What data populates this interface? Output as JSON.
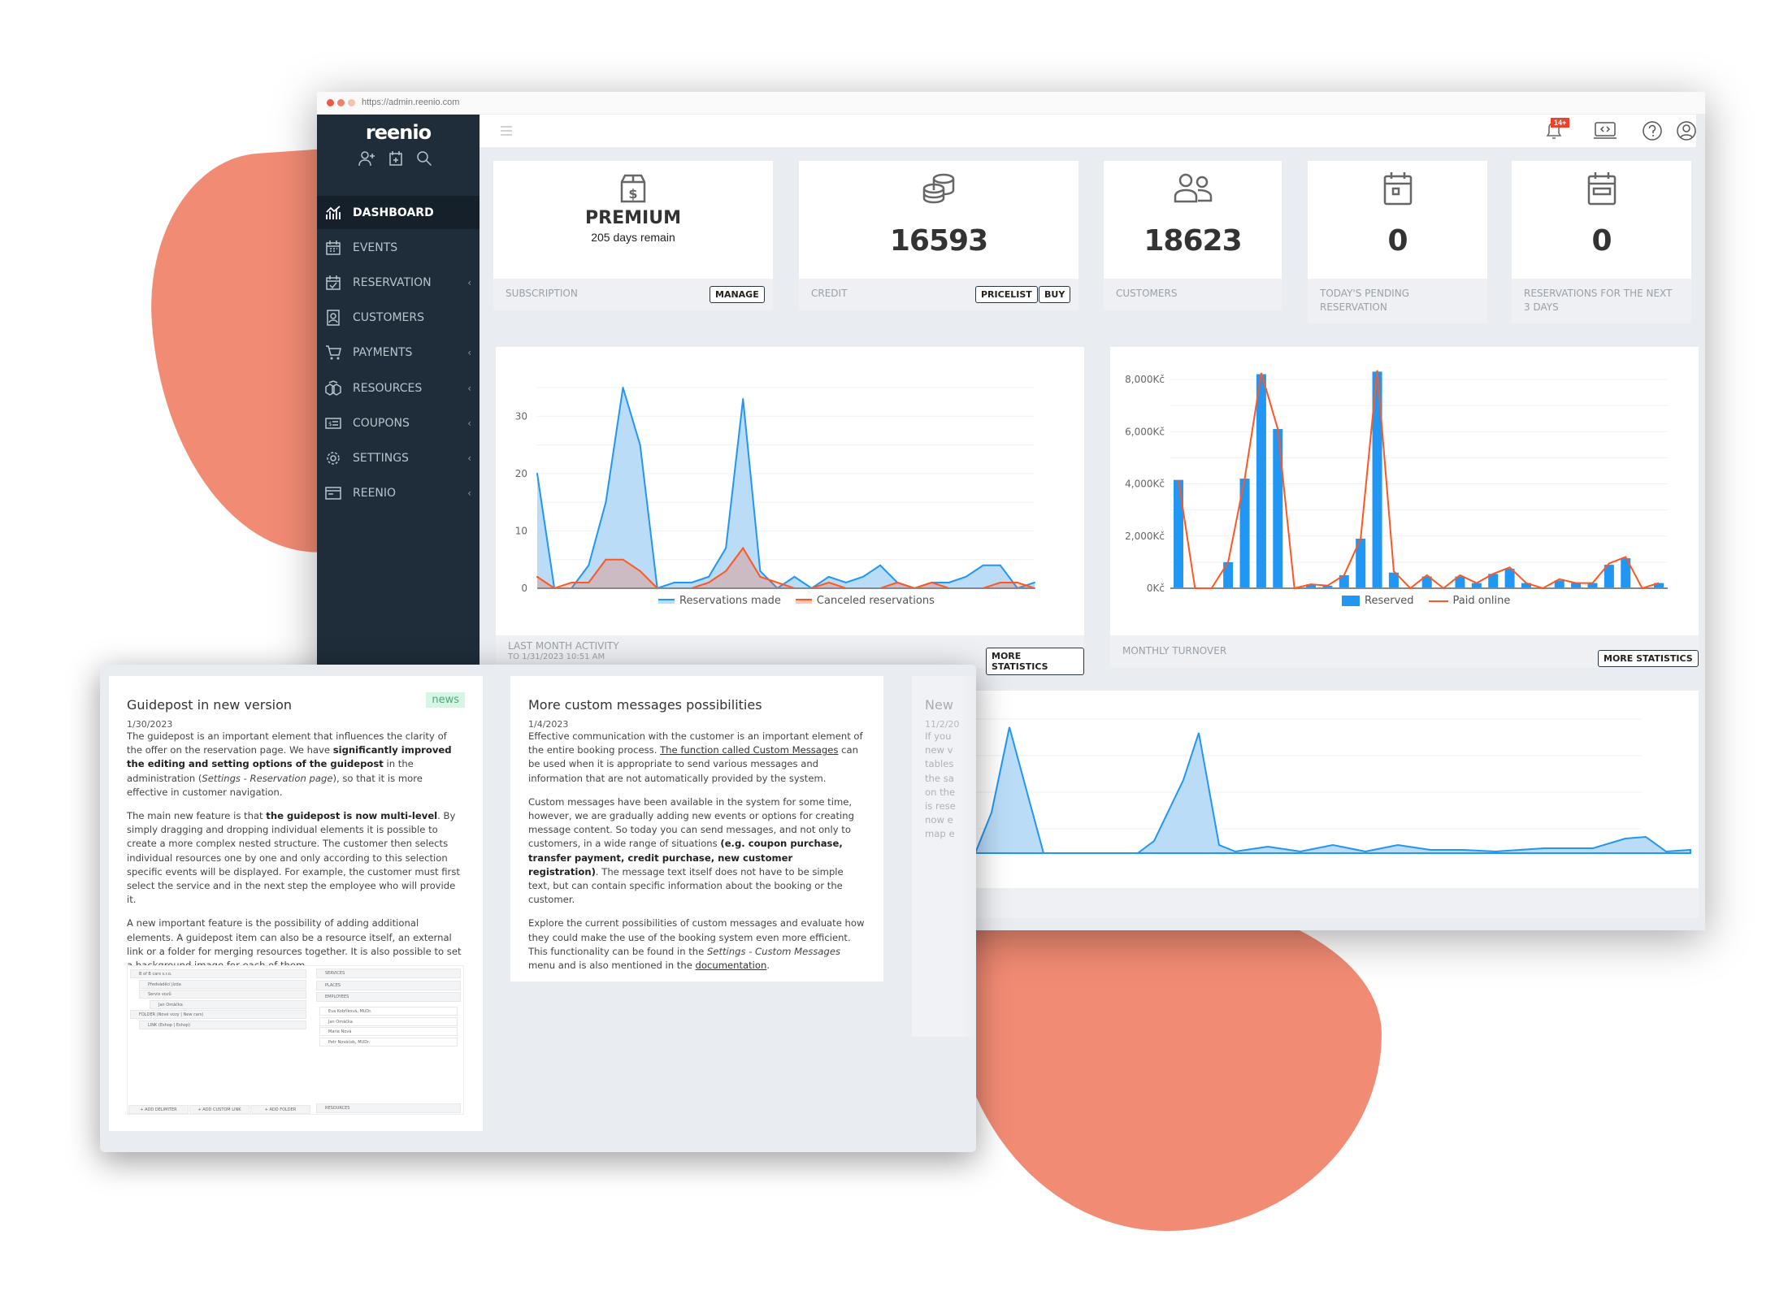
{
  "browser": {
    "url": "https://admin.reenio.com"
  },
  "sidebar": {
    "logo": "reenio",
    "quick_icons": [
      "add-user-icon",
      "calendar-add-icon",
      "search-icon"
    ],
    "items": [
      {
        "label": "DASHBOARD",
        "icon": "dashboard-chart-icon",
        "active": true,
        "chevron": false
      },
      {
        "label": "EVENTS",
        "icon": "calendar-grid-icon",
        "chevron": false
      },
      {
        "label": "RESERVATION",
        "icon": "calendar-check-icon",
        "chevron": true
      },
      {
        "label": "CUSTOMERS",
        "icon": "contact-book-icon",
        "chevron": false
      },
      {
        "label": "PAYMENTS",
        "icon": "cart-icon",
        "chevron": true
      },
      {
        "label": "RESOURCES",
        "icon": "boxes-icon",
        "chevron": true
      },
      {
        "label": "COUPONS",
        "icon": "coupon-icon",
        "chevron": true
      },
      {
        "label": "SETTINGS",
        "icon": "gear-icon",
        "chevron": true
      },
      {
        "label": "REENIO",
        "icon": "window-icon",
        "chevron": true
      }
    ]
  },
  "topbar": {
    "notifications_badge": "14+"
  },
  "stats": [
    {
      "title": "PREMIUM",
      "subtitle": "205 days remain",
      "label": "SUBSCRIPTION",
      "buttons": [
        "MANAGE"
      ],
      "icon": "box-dollar-icon"
    },
    {
      "value": "16593",
      "label": "CREDIT",
      "buttons": [
        "PRICELIST",
        "BUY"
      ],
      "icon": "coins-icon"
    },
    {
      "value": "18623",
      "label": "CUSTOMERS",
      "icon": "users-icon"
    },
    {
      "value": "0",
      "label": "TODAY'S PENDING RESERVATION",
      "icon": "calendar-day-icon"
    },
    {
      "value": "0",
      "label": "RESERVATIONS FOR THE NEXT 3 DAYS",
      "icon": "calendar-range-icon"
    }
  ],
  "chart1_footer": {
    "title": "LAST MONTH ACTIVITY",
    "subtitle": "TO 1/31/2023 10:51 AM",
    "button": "MORE STATISTICS"
  },
  "chart2_footer": {
    "title": "MONTHLY TURNOVER",
    "button": "MORE STATISTICS"
  },
  "chart_data": [
    {
      "type": "area",
      "ylim": [
        0,
        35
      ],
      "yticks": [
        "0",
        "10",
        "20",
        "30"
      ],
      "grid": true,
      "legend": "bottom",
      "series": [
        {
          "name": "Reservations made",
          "color": "#2196f3",
          "values": [
            20,
            0,
            0,
            4,
            15,
            35,
            25,
            0,
            1,
            1,
            2,
            7,
            33,
            3,
            0,
            2,
            0,
            2,
            1,
            2,
            4,
            1,
            0,
            1,
            1,
            2,
            4,
            4,
            0,
            1
          ]
        },
        {
          "name": "Canceled reservations",
          "color": "#ff5722",
          "values": [
            2,
            0,
            1,
            1,
            5,
            5,
            3,
            0,
            0,
            0,
            1,
            3,
            7,
            2,
            1,
            0,
            0,
            1,
            0,
            0,
            0,
            1,
            0,
            1,
            0,
            0,
            0,
            1,
            1,
            0
          ]
        }
      ]
    },
    {
      "type": "bar+line",
      "ylim": [
        0,
        8000
      ],
      "yticks": [
        "0Kč",
        "2,000Kč",
        "4,000Kč",
        "6,000Kč",
        "8,000Kč"
      ],
      "grid": true,
      "legend": "bottom",
      "series": [
        {
          "name": "Reserved",
          "type": "bar",
          "color": "#2196f3",
          "values": [
            4150,
            0,
            0,
            1000,
            4200,
            8200,
            6100,
            0,
            150,
            100,
            500,
            1900,
            8300,
            600,
            0,
            450,
            0,
            450,
            200,
            550,
            750,
            200,
            0,
            300,
            200,
            200,
            900,
            1150,
            0,
            200
          ]
        },
        {
          "name": "Paid online",
          "type": "line",
          "color": "#ff5722",
          "values": [
            4150,
            0,
            0,
            1000,
            4200,
            8250,
            6100,
            0,
            150,
            100,
            500,
            1900,
            8350,
            650,
            0,
            500,
            0,
            500,
            200,
            550,
            800,
            200,
            0,
            350,
            200,
            200,
            950,
            1200,
            0,
            200
          ]
        }
      ]
    }
  ],
  "news": [
    {
      "title": "Guidepost in new version",
      "badge": "news",
      "date": "1/30/2023",
      "paragraphs": [
        [
          {
            "t": "The guidepost is an important element that influences the clarity of the offer on the reservation page. We have "
          },
          {
            "t": "significantly improved the editing and setting options of the guidepost",
            "b": true
          },
          {
            "t": " in the administration ("
          },
          {
            "t": "Settings - Reservation page",
            "i": true
          },
          {
            "t": "), so that it is more effective in customer navigation."
          }
        ],
        [
          {
            "t": "The main new feature is that "
          },
          {
            "t": "the guidepost is now multi-level",
            "b": true
          },
          {
            "t": ". By simply dragging and dropping individual elements it is possible to create a more complex nested structure. The customer then selects individual resources one by one and only according to this selection specific events will be displayed. For example, the customer must first select the service and in the next step the employee who will provide it."
          }
        ],
        [
          {
            "t": "A new important feature is the possibility of adding additional elements. A guidepost item can also be a resource itself, an external link or a folder for merging resources together. It is also possible to set a background image for each of them."
          }
        ]
      ],
      "screenshot": {
        "tree": [
          "B of B cars s.r.o.",
          "Předváděcí jízda",
          "Servis vozů",
          "Jan Omáčka",
          "FOLDER (Nové vozy | New cars)",
          "LINK (Eshop | Eshop)"
        ],
        "sections": [
          "SERVICES",
          "PLACES",
          "EMPLOYEES",
          "RESOURCES"
        ],
        "employees": [
          "Eva Kobříková, MUDr.",
          "Jan Omáčka",
          "Marie Nová",
          "Petr Nováček, MUDr."
        ],
        "buttons": [
          "+ ADD DELIMITER",
          "+ ADD CUSTOM LINK",
          "+ ADD FOLDER"
        ]
      }
    },
    {
      "title": "More custom messages possibilities",
      "date": "1/4/2023",
      "paragraphs": [
        [
          {
            "t": "Effective communication with the customer is an important element of the entire booking process. "
          },
          {
            "t": "The function called Custom Messages",
            "u": true
          },
          {
            "t": " can be used when it is appropriate to send various messages and information that are not automatically provided by the system."
          }
        ],
        [
          {
            "t": "Custom messages have been available in the system for some time, however, we are gradually adding new events or options for creating message content. So today you can send messages, and not only to customers, in a wide range of situations "
          },
          {
            "t": "(e.g. coupon purchase, transfer payment, credit purchase, new customer registration)",
            "b": true
          },
          {
            "t": ". The message text itself does not have to be simple text, but can contain specific information about the booking or the customer."
          }
        ],
        [
          {
            "t": "Explore the current possibilities of custom messages and evaluate how they could make the use of the booking system even more efficient. This functionality can be found in the "
          },
          {
            "t": "Settings - Custom Messages",
            "i": true
          },
          {
            "t": " menu and is also mentioned in the "
          },
          {
            "t": "documentation",
            "u": true
          },
          {
            "t": "."
          }
        ]
      ]
    },
    {
      "title": "New",
      "date": "11/2/20",
      "lines": [
        "If you",
        "new v",
        "tables",
        "the sa",
        "on the",
        "is rese",
        "now e",
        "map e"
      ]
    }
  ]
}
